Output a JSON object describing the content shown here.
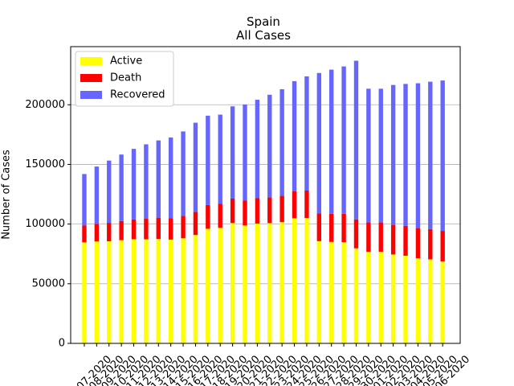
{
  "chart_data": {
    "type": "stacked_bar",
    "title": "Spain",
    "subtitle": "All Cases",
    "y_label": "Number of Cases",
    "categories": [
      "07-2020",
      "08-2020",
      "09-2020",
      "10-2020",
      "11-2020",
      "12-2020",
      "13-2020",
      "14-2020",
      "15-2020",
      "16-2020",
      "17-2020",
      "18-2020",
      "19-2020",
      "20-2020",
      "21-2020",
      "22-2020",
      "23-2020",
      "24-2020",
      "25-2020",
      "26-2020",
      "27-2020",
      "28-2020",
      "29-2020",
      "30-2020",
      "01-2020",
      "02-2020",
      "03-2020",
      "04-2020",
      "05-2020",
      "06-2020"
    ],
    "series": [
      {
        "name": "Active",
        "color": "#ffff00",
        "values": [
          84689,
          85407,
          85610,
          86524,
          87312,
          87231,
          87616,
          86981,
          88083,
          90836,
          96040,
          96886,
          100864,
          98771,
          100382,
          100757,
          101617,
          104885,
          105149,
          85712,
          85069,
          84820,
          79695,
          76842,
          76842,
          74510,
          73464,
          71404,
          70415,
          68710
        ]
      },
      {
        "name": "Death",
        "color": "#ff0000",
        "values": [
          14045,
          14792,
          15447,
          16081,
          16606,
          17209,
          17756,
          18056,
          18708,
          19315,
          20002,
          20043,
          20453,
          20852,
          21282,
          21717,
          22157,
          22524,
          22902,
          23190,
          23521,
          23822,
          24275,
          24543,
          24543,
          24824,
          25100,
          25264,
          25428,
          25613
        ]
      },
      {
        "name": "Recovered",
        "color": "#6666ff",
        "values": [
          43208,
          48021,
          52165,
          55668,
          59109,
          62391,
          64727,
          67504,
          70853,
          74797,
          74797,
          74797,
          77357,
          80587,
          82514,
          85915,
          89250,
          92355,
          95708,
          117727,
          120832,
          123486,
          132929,
          112050,
          112050,
          117248,
          118902,
          121343,
          123486,
          126002
        ]
      }
    ],
    "ylim": [
      0,
      248700
    ],
    "yticks": [
      0,
      50000,
      100000,
      150000,
      200000
    ],
    "grid": true,
    "legend": "upper left"
  }
}
